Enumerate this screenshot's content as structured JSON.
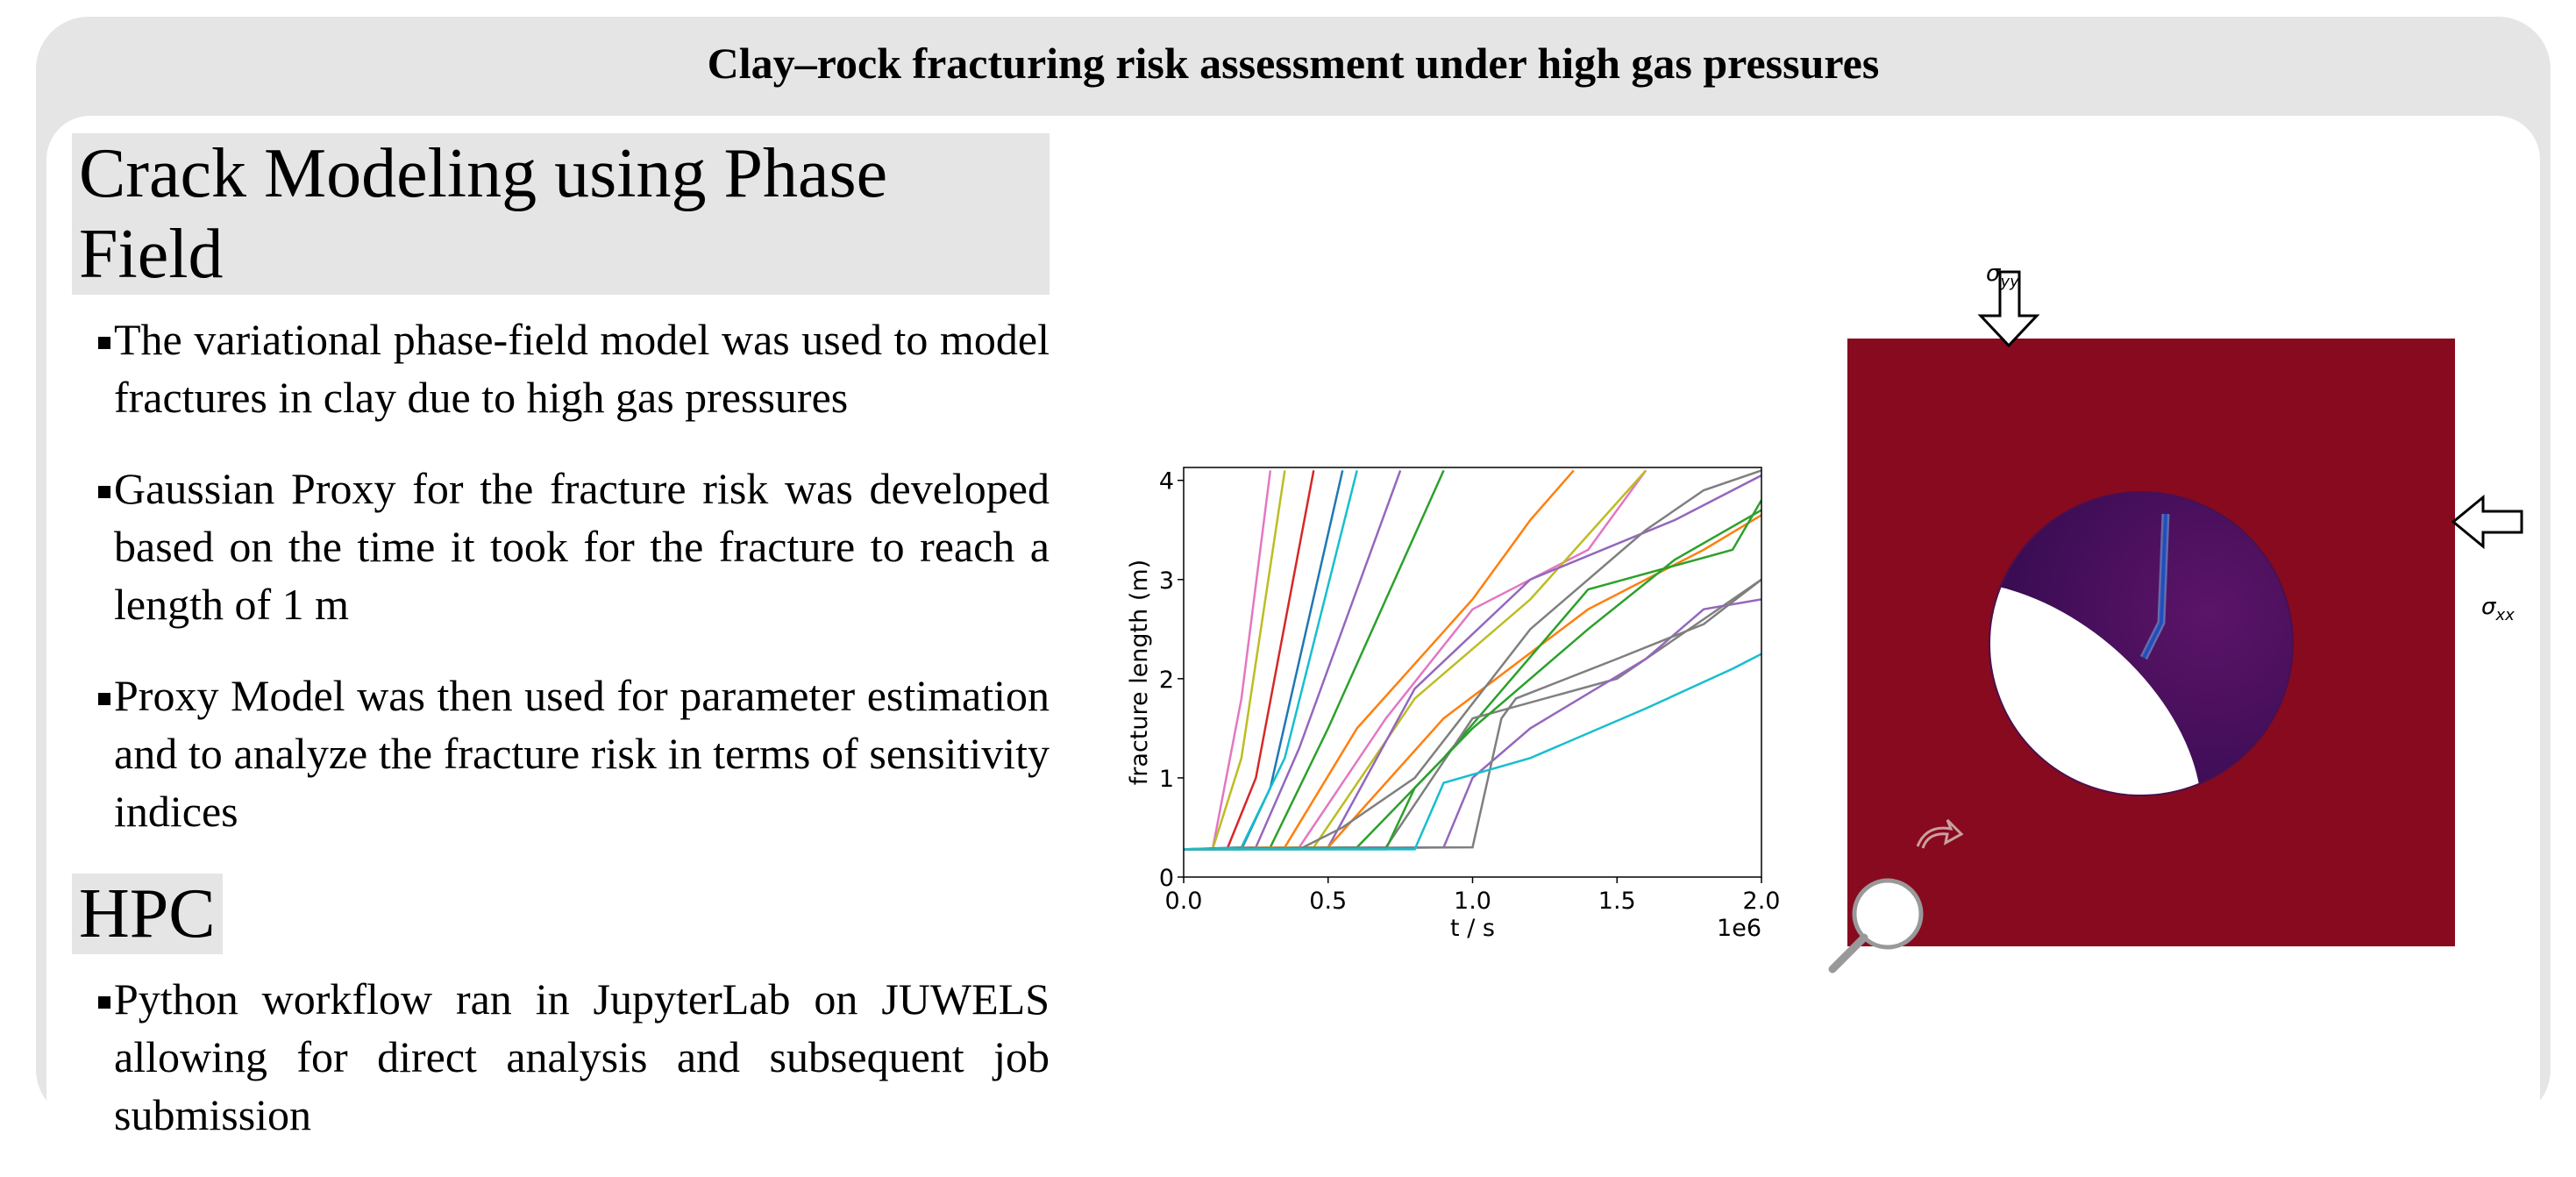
{
  "title": "Clay–rock fracturing risk assessment under high gas pressures",
  "sections": [
    {
      "heading": "Crack Modeling using Phase Field",
      "bullets": [
        "The variational phase-field model was used to model fractures in clay due to high gas pressures",
        "Gaussian Proxy for the fracture risk was developed based on the time it took for the fracture to reach a length of 1 m",
        "Proxy Model was then used for parameter estimation and to analyze the fracture risk in terms of sensitivity indices"
      ]
    },
    {
      "heading": "HPC",
      "bullets": [
        "Python workflow ran in JupyterLab on JUWELS allowing for direct analysis and subsequent job submission"
      ]
    }
  ],
  "chart_data": {
    "type": "line",
    "x_label": "t / s",
    "y_label": "fracture length (m)",
    "x_offset_label": "1e6",
    "xlim": [
      0,
      2.0
    ],
    "ylim": [
      0,
      4.13
    ],
    "xticks": [
      {
        "value": 0,
        "label": "0.0"
      },
      {
        "value": 0.5,
        "label": "0.5"
      },
      {
        "value": 1.0,
        "label": "1.0"
      },
      {
        "value": 1.5,
        "label": "1.5"
      },
      {
        "value": 2.0,
        "label": "2.0"
      }
    ],
    "yticks": [
      0,
      1,
      2,
      3,
      4
    ],
    "series": [
      {
        "color": "#e377c2",
        "x": [
          0,
          0.1,
          0.2,
          0.3
        ],
        "values": [
          0.28,
          0.28,
          1.8,
          4.1
        ]
      },
      {
        "color": "#bcbd22",
        "x": [
          0,
          0.1,
          0.2,
          0.35
        ],
        "values": [
          0.28,
          0.28,
          1.2,
          4.1
        ]
      },
      {
        "color": "#d62728",
        "x": [
          0,
          0.15,
          0.25,
          0.45
        ],
        "values": [
          0.28,
          0.28,
          1.0,
          4.1
        ]
      },
      {
        "color": "#1f77b4",
        "x": [
          0,
          0.2,
          0.3,
          0.55
        ],
        "values": [
          0.28,
          0.28,
          0.9,
          4.1
        ]
      },
      {
        "color": "#17becf",
        "x": [
          0,
          0.2,
          0.35,
          0.6
        ],
        "values": [
          0.28,
          0.3,
          1.2,
          4.1
        ]
      },
      {
        "color": "#9467bd",
        "x": [
          0,
          0.25,
          0.4,
          0.75
        ],
        "values": [
          0.28,
          0.3,
          1.3,
          4.1
        ]
      },
      {
        "color": "#2ca02c",
        "x": [
          0,
          0.3,
          0.5,
          0.9
        ],
        "values": [
          0.28,
          0.3,
          1.5,
          4.1
        ]
      },
      {
        "color": "#ff7f0e",
        "x": [
          0,
          0.35,
          0.6,
          1.0,
          1.2,
          1.35
        ],
        "values": [
          0.28,
          0.3,
          1.5,
          2.8,
          3.6,
          4.1
        ]
      },
      {
        "color": "#e377c2",
        "x": [
          0,
          0.4,
          0.7,
          1.0,
          1.4,
          1.6
        ],
        "values": [
          0.28,
          0.3,
          1.6,
          2.7,
          3.3,
          4.1
        ]
      },
      {
        "color": "#bcbd22",
        "x": [
          0,
          0.45,
          0.8,
          1.2,
          1.6
        ],
        "values": [
          0.28,
          0.3,
          1.8,
          2.8,
          4.1
        ]
      },
      {
        "color": "#9467bd",
        "x": [
          0,
          0.5,
          0.8,
          1.2,
          1.7,
          2.0
        ],
        "values": [
          0.28,
          0.3,
          1.9,
          3.0,
          3.6,
          4.05
        ]
      },
      {
        "color": "#ff7f0e",
        "x": [
          0,
          0.5,
          0.9,
          1.4,
          1.8,
          2.0
        ],
        "values": [
          0.28,
          0.3,
          1.6,
          2.7,
          3.3,
          3.65
        ]
      },
      {
        "color": "#2ca02c",
        "x": [
          0,
          0.6,
          0.9,
          1.4,
          1.9,
          2.0
        ],
        "values": [
          0.28,
          0.3,
          1.2,
          2.9,
          3.3,
          3.8
        ]
      },
      {
        "color": "#7f7f7f",
        "x": [
          0,
          0.4,
          0.55,
          0.8,
          1.2,
          1.6,
          1.8,
          2.0
        ],
        "values": [
          0.28,
          0.28,
          0.5,
          1.0,
          2.5,
          3.5,
          3.9,
          4.1
        ]
      },
      {
        "color": "#7f7f7f",
        "x": [
          0,
          0.7,
          1.0,
          1.5,
          1.8,
          2.0
        ],
        "values": [
          0.28,
          0.3,
          1.6,
          2.0,
          2.6,
          3.0
        ]
      },
      {
        "color": "#2ca02c",
        "x": [
          0,
          0.7,
          0.8,
          1.0,
          1.4,
          1.7,
          2.0
        ],
        "values": [
          0.28,
          0.28,
          0.9,
          1.5,
          2.5,
          3.2,
          3.7
        ]
      },
      {
        "color": "#9467bd",
        "x": [
          0,
          0.9,
          1.0,
          1.2,
          1.6,
          1.8,
          2.0
        ],
        "values": [
          0.28,
          0.3,
          1.0,
          1.5,
          2.2,
          2.7,
          2.8
        ]
      },
      {
        "color": "#7f7f7f",
        "x": [
          0,
          1.0,
          1.1,
          1.15,
          1.5,
          1.8,
          2.0
        ],
        "values": [
          0.28,
          0.3,
          1.6,
          1.8,
          2.2,
          2.55,
          3.0
        ]
      },
      {
        "color": "#17becf",
        "x": [
          0,
          0.8,
          0.9,
          1.2,
          1.6,
          1.9,
          2.0
        ],
        "values": [
          0.28,
          0.28,
          0.95,
          1.2,
          1.7,
          2.1,
          2.25
        ]
      }
    ]
  },
  "figure": {
    "labels": [
      {
        "base": "σ",
        "sub": "yy"
      },
      {
        "base": "σ",
        "sub": "xx"
      }
    ]
  }
}
